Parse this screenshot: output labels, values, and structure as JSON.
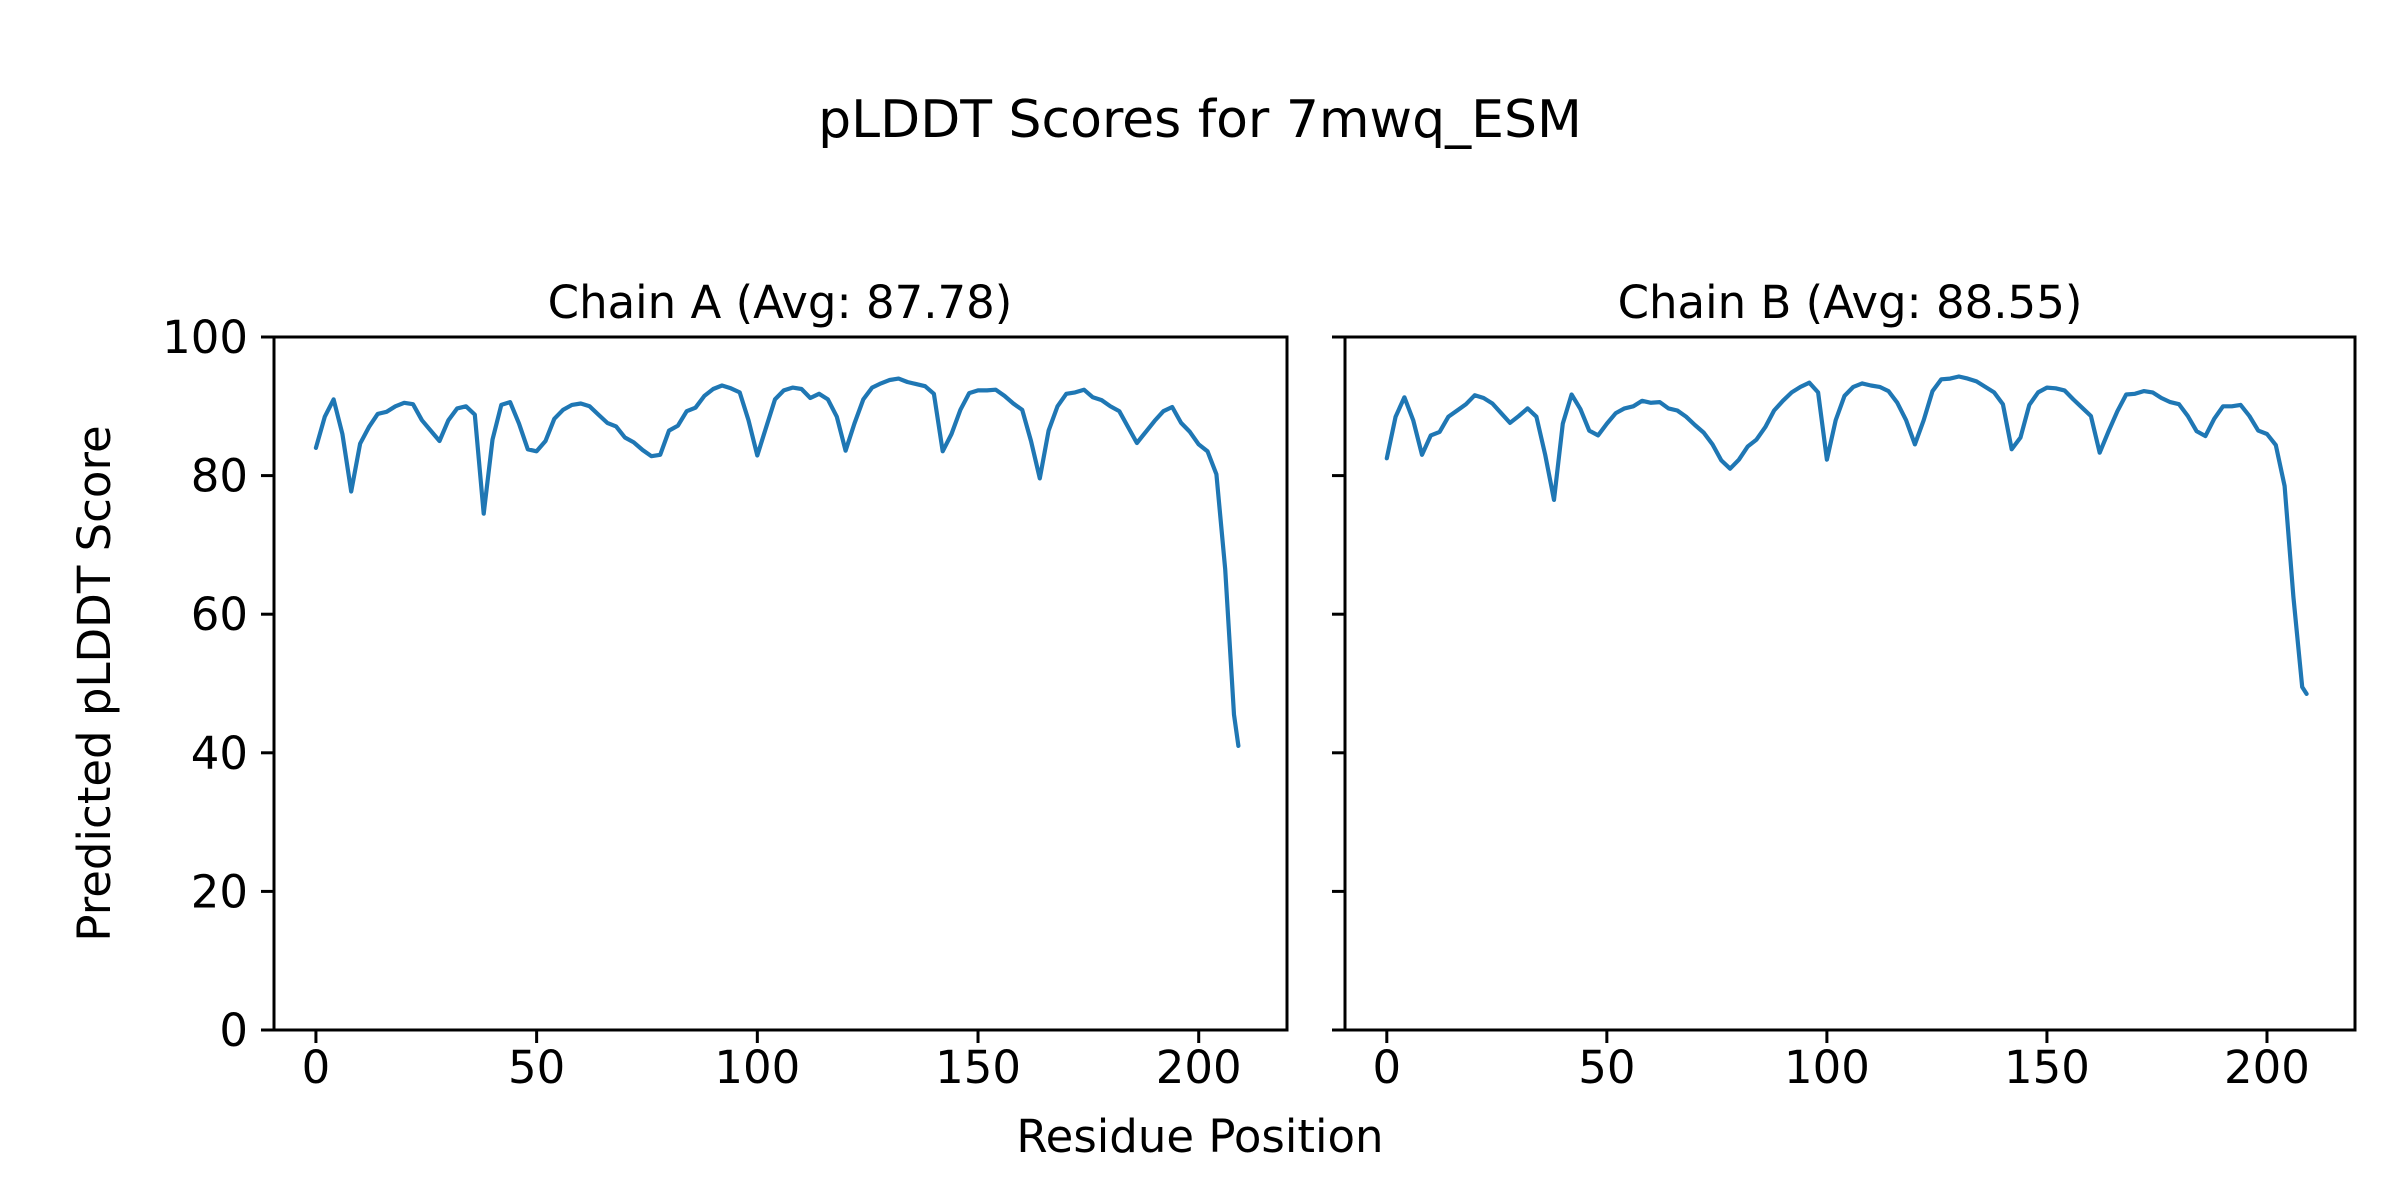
{
  "figure": {
    "title": "pLDDT Scores for 7mwq_ESM",
    "xlabel": "Residue Position",
    "ylabel": "Predicted pLDDT Score",
    "background_color": "#ffffff",
    "line_color": "#1f77b4",
    "axis_color": "#000000"
  },
  "chart_data": [
    {
      "type": "line",
      "name": "Chain A",
      "title": "Chain A (Avg: 87.78)",
      "avg": 87.78,
      "xlabel": "Residue Position",
      "ylabel": "Predicted pLDDT Score",
      "xlim": [
        -9.5,
        220
      ],
      "ylim": [
        0,
        100
      ],
      "xticks": [
        0,
        50,
        100,
        150,
        200
      ],
      "yticks": [
        0,
        20,
        40,
        60,
        80,
        100
      ],
      "show_ytick_labels": true,
      "grid": false,
      "legend": "none",
      "x": [
        0,
        2,
        4,
        6,
        8,
        10,
        12,
        14,
        16,
        18,
        20,
        22,
        24,
        26,
        28,
        30,
        32,
        34,
        36,
        38,
        40,
        42,
        44,
        46,
        48,
        50,
        52,
        54,
        56,
        58,
        60,
        62,
        64,
        66,
        68,
        70,
        72,
        74,
        76,
        78,
        80,
        82,
        84,
        86,
        88,
        90,
        92,
        94,
        96,
        98,
        100,
        102,
        104,
        106,
        108,
        110,
        112,
        114,
        116,
        118,
        120,
        122,
        124,
        126,
        128,
        130,
        132,
        134,
        136,
        138,
        140,
        142,
        144,
        146,
        148,
        150,
        152,
        154,
        156,
        158,
        160,
        162,
        164,
        166,
        168,
        170,
        172,
        174,
        176,
        178,
        180,
        182,
        184,
        186,
        188,
        190,
        192,
        194,
        196,
        198,
        200,
        202,
        204,
        206,
        208,
        209
      ],
      "y": [
        84.0,
        88.5,
        91.0,
        86.0,
        77.7,
        84.6,
        87.0,
        88.9,
        89.2,
        90.0,
        90.5,
        90.3,
        88.0,
        86.5,
        85.0,
        88.0,
        89.7,
        90.0,
        88.8,
        74.5,
        85.2,
        90.2,
        90.6,
        87.5,
        83.8,
        83.5,
        85.0,
        88.2,
        89.5,
        90.2,
        90.4,
        90.0,
        88.8,
        87.6,
        87.1,
        85.5,
        84.8,
        83.7,
        82.8,
        83.0,
        86.5,
        87.2,
        89.3,
        89.8,
        91.5,
        92.5,
        93.0,
        92.6,
        92.0,
        88.0,
        82.9,
        87.0,
        91.0,
        92.3,
        92.7,
        92.5,
        91.2,
        91.8,
        91.0,
        88.5,
        83.6,
        87.5,
        91.0,
        92.7,
        93.3,
        93.8,
        94.0,
        93.5,
        93.2,
        92.9,
        91.8,
        83.5,
        86.0,
        89.5,
        91.9,
        92.3,
        92.3,
        92.4,
        91.5,
        90.4,
        89.5,
        85.0,
        79.6,
        86.5,
        90.0,
        91.8,
        92.0,
        92.4,
        91.3,
        90.9,
        90.0,
        89.3,
        87.0,
        84.7,
        86.3,
        87.9,
        89.3,
        89.9,
        87.6,
        86.3,
        84.5,
        83.5,
        80.2,
        66.5,
        45.5,
        41.0
      ]
    },
    {
      "type": "line",
      "name": "Chain B",
      "title": "Chain B (Avg: 88.55)",
      "avg": 88.55,
      "xlabel": "Residue Position",
      "ylabel": "Predicted pLDDT Score",
      "xlim": [
        -9.5,
        220
      ],
      "ylim": [
        0,
        100
      ],
      "xticks": [
        0,
        50,
        100,
        150,
        200
      ],
      "yticks": [
        0,
        20,
        40,
        60,
        80,
        100
      ],
      "show_ytick_labels": false,
      "grid": false,
      "legend": "none",
      "x": [
        0,
        2,
        4,
        6,
        8,
        10,
        12,
        14,
        16,
        18,
        20,
        22,
        24,
        26,
        28,
        30,
        32,
        34,
        36,
        38,
        40,
        42,
        44,
        46,
        48,
        50,
        52,
        54,
        56,
        58,
        60,
        62,
        64,
        66,
        68,
        70,
        72,
        74,
        76,
        78,
        80,
        82,
        84,
        86,
        88,
        90,
        92,
        94,
        96,
        98,
        100,
        102,
        104,
        106,
        108,
        110,
        112,
        114,
        116,
        118,
        120,
        122,
        124,
        126,
        128,
        130,
        132,
        134,
        136,
        138,
        140,
        142,
        144,
        146,
        148,
        150,
        152,
        154,
        156,
        158,
        160,
        162,
        164,
        166,
        168,
        170,
        172,
        174,
        176,
        178,
        180,
        182,
        184,
        186,
        188,
        190,
        192,
        194,
        196,
        198,
        200,
        202,
        204,
        206,
        208,
        209
      ],
      "y": [
        82.5,
        88.5,
        91.3,
        88.0,
        83.0,
        85.8,
        86.3,
        88.5,
        89.4,
        90.3,
        91.6,
        91.2,
        90.4,
        89.0,
        87.6,
        88.6,
        89.7,
        88.5,
        83.0,
        76.5,
        87.5,
        91.7,
        89.6,
        86.5,
        85.8,
        87.5,
        89.0,
        89.7,
        90.0,
        90.8,
        90.5,
        90.6,
        89.7,
        89.4,
        88.5,
        87.3,
        86.2,
        84.5,
        82.2,
        81.0,
        82.3,
        84.2,
        85.2,
        87.0,
        89.4,
        90.8,
        92.0,
        92.8,
        93.4,
        92.0,
        82.3,
        88.0,
        91.5,
        92.8,
        93.3,
        93.0,
        92.8,
        92.2,
        90.5,
        88.0,
        84.5,
        88.0,
        92.2,
        93.9,
        94.0,
        94.3,
        94.0,
        93.6,
        92.8,
        92.0,
        90.3,
        83.8,
        85.5,
        90.2,
        92.0,
        92.7,
        92.6,
        92.3,
        91.0,
        89.8,
        88.6,
        83.3,
        86.4,
        89.3,
        91.7,
        91.8,
        92.2,
        92.0,
        91.2,
        90.6,
        90.3,
        88.6,
        86.4,
        85.7,
        88.2,
        90.0,
        90.0,
        90.2,
        88.6,
        86.5,
        86.0,
        84.4,
        78.5,
        62.5,
        49.5,
        48.5
      ]
    }
  ]
}
